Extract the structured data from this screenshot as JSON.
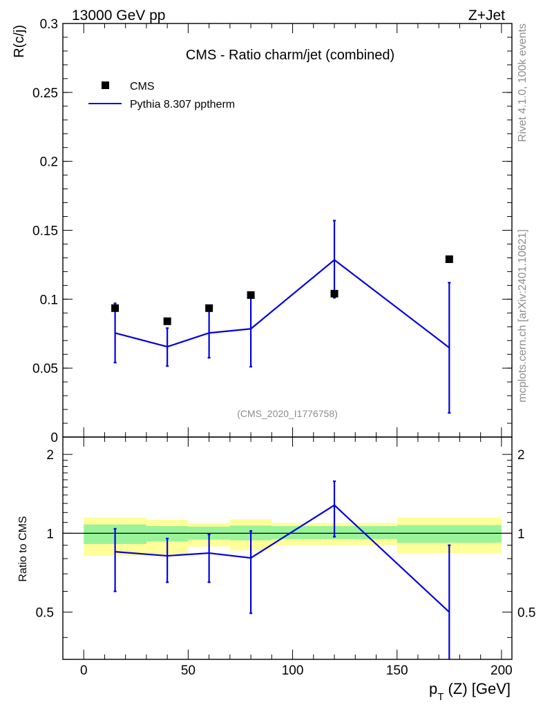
{
  "header": {
    "left": "13000 GeV pp",
    "right": "Z+Jet"
  },
  "side_text": {
    "top": "Rivet 4.1.0,  100k events",
    "bottom": "mcplots.cern.ch [arXiv:2401.10621]"
  },
  "chart_data": [
    {
      "type": "scatter",
      "panel": "main",
      "title": "CMS - Ratio charm/jet (combined)",
      "xlabel": "",
      "ylabel": "R(c/j)",
      "xlim": [
        -10,
        205
      ],
      "ylim": [
        0,
        0.3
      ],
      "yticks": [
        "0",
        "0.05",
        "0.1",
        "0.15",
        "0.2",
        "0.25",
        "0.3"
      ],
      "analysis_label": "(CMS_2020_I1776758)",
      "legend": [
        "CMS",
        "Pythia 8.307 pptherm"
      ],
      "series": [
        {
          "name": "CMS",
          "kind": "markers",
          "color": "#000000",
          "x": [
            15,
            40,
            60,
            80,
            120,
            175
          ],
          "y": [
            0.0935,
            0.084,
            0.0935,
            0.103,
            0.104,
            0.129
          ]
        },
        {
          "name": "Pythia 8.307 pptherm",
          "kind": "line",
          "color": "#0000e0",
          "x": [
            15,
            40,
            60,
            80,
            120,
            175
          ],
          "y": [
            0.0755,
            0.0655,
            0.0755,
            0.0785,
            0.1285,
            0.0648
          ],
          "err_low": [
            0.054,
            0.0515,
            0.0575,
            0.051,
            0.101,
            0.0175
          ],
          "err_high": [
            0.097,
            0.079,
            0.093,
            0.103,
            0.157,
            0.112
          ]
        }
      ]
    },
    {
      "type": "line",
      "panel": "ratio",
      "xlabel": "p_T (Z) [GeV]",
      "ylabel": "Ratio to CMS",
      "xlim": [
        -10,
        205
      ],
      "ylim": [
        0.33,
        2.33
      ],
      "yticks": [
        "0.5",
        "1",
        "2"
      ],
      "xticks": [
        "0",
        "50",
        "100",
        "150",
        "200"
      ],
      "bands": [
        {
          "x0": 0,
          "x1": 30,
          "y_low": 0.91,
          "y_high": 1.08,
          "y_low_outer": 0.82,
          "y_high_outer": 1.15
        },
        {
          "x0": 30,
          "x1": 50,
          "y_low": 0.93,
          "y_high": 1.065,
          "y_low_outer": 0.83,
          "y_high_outer": 1.125
        },
        {
          "x0": 50,
          "x1": 70,
          "y_low": 0.945,
          "y_high": 1.06,
          "y_low_outer": 0.89,
          "y_high_outer": 1.095
        },
        {
          "x0": 70,
          "x1": 90,
          "y_low": 0.94,
          "y_high": 1.07,
          "y_low_outer": 0.86,
          "y_high_outer": 1.13
        },
        {
          "x0": 90,
          "x1": 150,
          "y_low": 0.95,
          "y_high": 1.065,
          "y_low_outer": 0.9,
          "y_high_outer": 1.095
        },
        {
          "x0": 150,
          "x1": 200,
          "y_low": 0.92,
          "y_high": 1.075,
          "y_low_outer": 0.84,
          "y_high_outer": 1.15
        }
      ],
      "reference": 1,
      "series": [
        {
          "name": "Pythia 8.307 pptherm / CMS",
          "color": "#0000e0",
          "x": [
            15,
            40,
            60,
            80,
            120,
            175
          ],
          "y": [
            0.85,
            0.82,
            0.84,
            0.805,
            1.28,
            0.5
          ],
          "err_low": [
            0.6,
            0.65,
            0.65,
            0.495,
            0.97,
            0.33
          ],
          "err_high": [
            1.04,
            0.955,
            0.99,
            1.02,
            1.58,
            0.9
          ]
        }
      ]
    }
  ]
}
